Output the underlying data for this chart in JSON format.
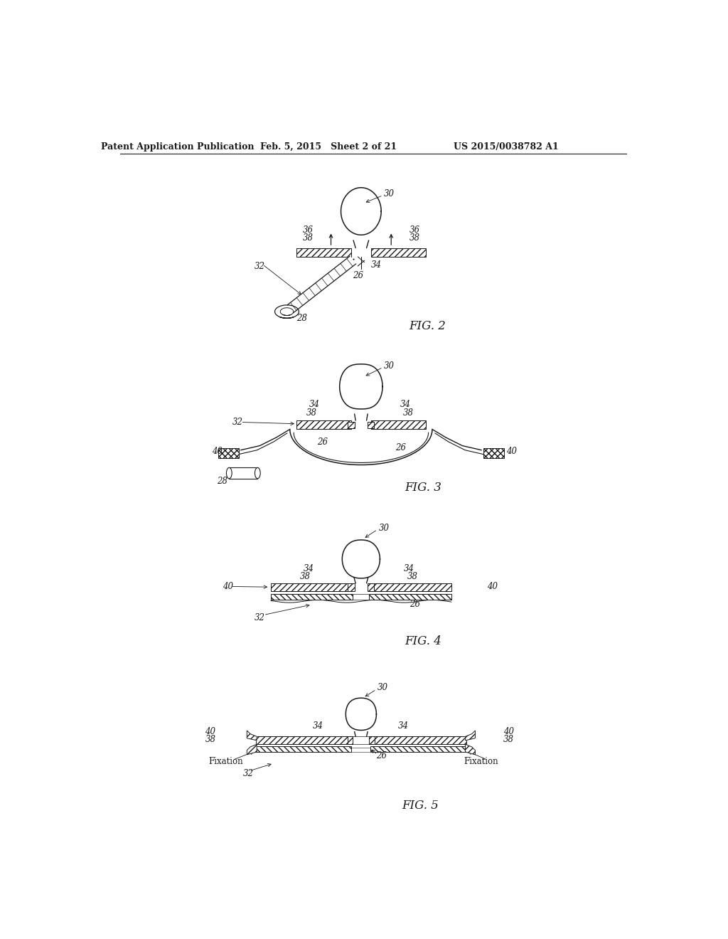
{
  "header_left": "Patent Application Publication",
  "header_center": "Feb. 5, 2015   Sheet 2 of 21",
  "header_right": "US 2015/0038782 A1",
  "bg_color": "#ffffff",
  "line_color": "#1a1a1a",
  "text_color": "#1a1a1a",
  "label_fontsize": 8.5,
  "header_fontsize": 9,
  "fig_label_fontsize": 12
}
